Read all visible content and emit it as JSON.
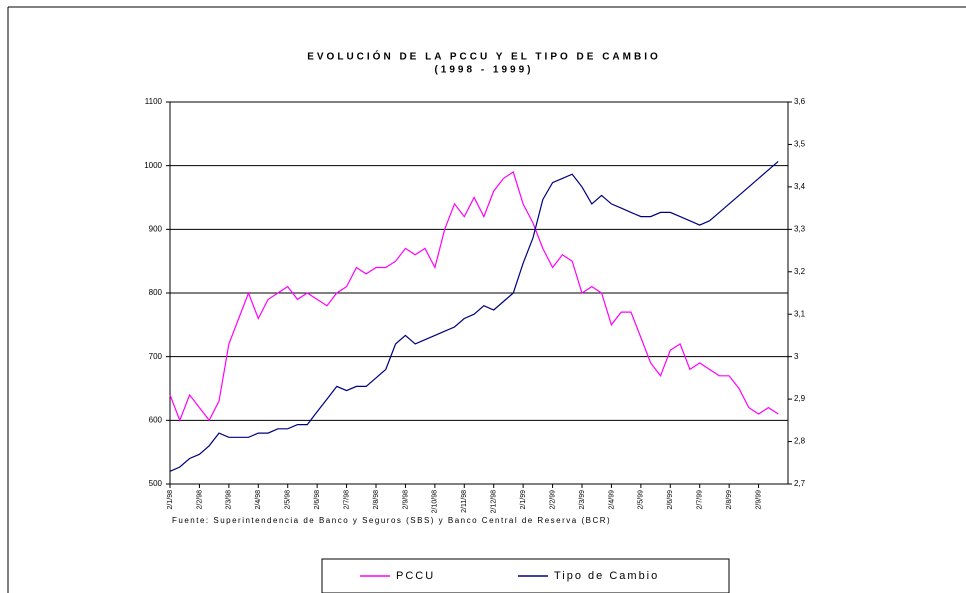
{
  "chart_data": {
    "type": "line",
    "title": "EVOLUCIÓN DE LA PCCU Y EL TIPO DE CAMBIO",
    "subtitle": "(1998 - 1999)",
    "note": "Fuente: Superintendencia de Banco y Seguros (SBS) y Banco Central de Reserva (BCR)",
    "categories": [
      "2/1/98",
      null,
      null,
      "2/2/98",
      null,
      null,
      "2/3/98",
      null,
      null,
      "2/4/98",
      null,
      null,
      "2/5/98",
      null,
      null,
      "2/6/98",
      null,
      null,
      "2/7/98",
      null,
      null,
      "2/8/98",
      null,
      null,
      "2/9/98",
      null,
      null,
      "2/10/98",
      null,
      null,
      "2/11/98",
      null,
      null,
      "2/12/98",
      null,
      null,
      "2/1/99",
      null,
      null,
      "2/2/99",
      null,
      null,
      "2/3/99",
      null,
      null,
      "2/4/99",
      null,
      null,
      "2/5/99",
      null,
      null,
      "2/6/99",
      null,
      null,
      "2/7/99",
      null,
      null,
      "2/8/99",
      null,
      null,
      "2/9/99",
      null,
      null
    ],
    "series": [
      {
        "name": "PCCU",
        "color": "#ff00ff",
        "values": [
          640,
          600,
          640,
          620,
          600,
          630,
          720,
          760,
          800,
          760,
          790,
          800,
          810,
          790,
          800,
          790,
          780,
          800,
          810,
          840,
          830,
          840,
          840,
          850,
          870,
          860,
          870,
          840,
          900,
          940,
          920,
          950,
          920,
          960,
          980,
          990,
          940,
          910,
          870,
          840,
          860,
          850,
          800,
          810,
          800,
          750,
          770,
          770,
          730,
          690,
          670,
          710,
          720,
          680,
          690,
          680,
          670,
          670,
          650,
          620,
          610,
          620,
          610
        ]
      },
      {
        "name": "Tipo de Cambio",
        "color": "#000080",
        "axis": "y2",
        "values": [
          2.73,
          2.74,
          2.76,
          2.77,
          2.79,
          2.82,
          2.81,
          2.81,
          2.81,
          2.82,
          2.82,
          2.83,
          2.83,
          2.84,
          2.84,
          2.87,
          2.9,
          2.93,
          2.92,
          2.93,
          2.93,
          2.95,
          2.97,
          3.03,
          3.05,
          3.03,
          3.04,
          3.05,
          3.06,
          3.07,
          3.09,
          3.1,
          3.12,
          3.11,
          3.13,
          3.15,
          3.22,
          3.28,
          3.37,
          3.41,
          3.42,
          3.43,
          3.4,
          3.36,
          3.38,
          3.36,
          3.35,
          3.34,
          3.33,
          3.33,
          3.34,
          3.34,
          3.33,
          3.32,
          3.31,
          3.32,
          3.34,
          3.36,
          3.38,
          3.4,
          3.42,
          3.44,
          3.46
        ]
      }
    ],
    "ylim": [
      500,
      1100
    ],
    "yticks": [
      500,
      600,
      700,
      800,
      900,
      1000,
      1100
    ],
    "y2lim": [
      2.7,
      3.6
    ],
    "y2ticks": [
      {
        "value": 2.7,
        "label": "2,7"
      },
      {
        "value": 2.8,
        "label": "2,8"
      },
      {
        "value": 2.9,
        "label": "2,9"
      },
      {
        "value": 3.0,
        "label": "3"
      },
      {
        "value": 3.1,
        "label": "3,1"
      },
      {
        "value": 3.2,
        "label": "3,2"
      },
      {
        "value": 3.3,
        "label": "3,3"
      },
      {
        "value": 3.4,
        "label": "3,4"
      },
      {
        "value": 3.5,
        "label": "3,5"
      },
      {
        "value": 3.6,
        "label": "3,6"
      }
    ],
    "grid": true
  }
}
